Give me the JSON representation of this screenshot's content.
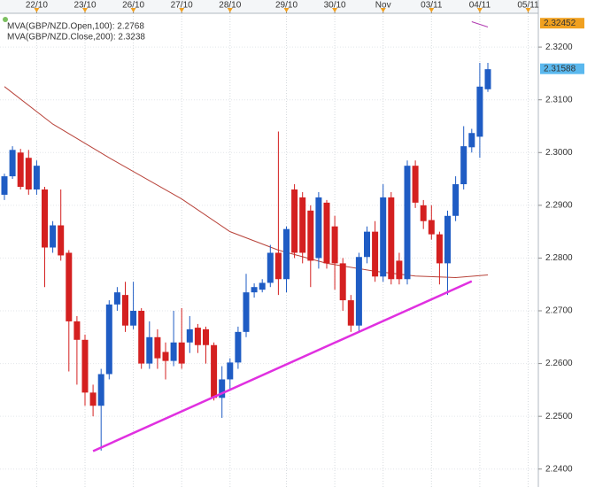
{
  "chart_data": {
    "type": "candlestick",
    "categories": [
      null,
      null,
      null,
      null,
      "22/10",
      null,
      null,
      null,
      null,
      null,
      "23/10",
      null,
      null,
      null,
      null,
      null,
      "26/10",
      null,
      null,
      null,
      null,
      null,
      "27/10",
      null,
      null,
      null,
      null,
      null,
      "28/10",
      null,
      null,
      null,
      null,
      null,
      null,
      "29/10",
      null,
      null,
      null,
      null,
      null,
      "30/10",
      null,
      null,
      null,
      null,
      null,
      "Nov",
      null,
      null,
      null,
      null,
      null,
      "03/11",
      null,
      null,
      null,
      null,
      null,
      "04/11",
      null,
      null,
      null,
      null,
      null,
      "05/11"
    ],
    "open": [
      2.292,
      2.2955,
      2.3,
      2.299,
      2.293,
      2.293,
      2.282,
      2.2862,
      2.281,
      2.268,
      2.2645,
      2.2545,
      2.252,
      2.258,
      2.2712,
      2.273,
      2.2672,
      2.27,
      2.26,
      2.265,
      2.2622,
      2.2605,
      2.264,
      2.264,
      2.2668,
      2.2665,
      2.2635,
      2.2535,
      2.257,
      2.2602,
      2.266,
      2.2735,
      2.274,
      2.2753,
      2.281,
      2.276,
      2.293,
      2.2915,
      2.289,
      2.28,
      2.2905,
      2.286,
      2.279,
      2.272,
      2.2672,
      2.2802,
      2.285,
      2.2765,
      2.2915,
      2.2795,
      2.276,
      2.2975,
      2.29,
      2.2872,
      2.2845,
      2.279,
      2.288,
      2.294,
      2.301,
      2.303,
      2.312,
      null,
      null,
      null,
      null,
      null
    ],
    "high": [
      2.296,
      2.3012,
      2.3007,
      2.3005,
      2.2985,
      2.2935,
      2.287,
      2.293,
      2.2815,
      2.269,
      2.2655,
      2.256,
      2.259,
      2.272,
      2.2745,
      2.2755,
      2.2755,
      2.2705,
      2.268,
      2.2665,
      2.264,
      2.27,
      2.2705,
      2.269,
      2.2675,
      2.267,
      2.264,
      2.2595,
      2.261,
      2.267,
      2.277,
      2.2752,
      2.276,
      2.2825,
      2.304,
      2.286,
      2.294,
      2.2925,
      2.29,
      2.2925,
      2.291,
      2.288,
      2.28,
      2.273,
      2.281,
      2.286,
      2.287,
      2.294,
      2.2925,
      2.281,
      2.2985,
      2.2985,
      2.291,
      2.29,
      2.285,
      2.289,
      2.2955,
      2.305,
      2.3045,
      2.317,
      2.317,
      null,
      null,
      null,
      null,
      null
    ],
    "low": [
      2.291,
      2.295,
      2.293,
      2.292,
      2.292,
      2.2745,
      2.281,
      2.2795,
      2.2585,
      2.256,
      2.252,
      2.25,
      2.2435,
      2.257,
      2.27,
      2.266,
      2.2665,
      2.259,
      2.259,
      2.259,
      2.257,
      2.2595,
      2.259,
      2.262,
      2.262,
      2.26,
      2.253,
      2.2497,
      2.255,
      2.259,
      2.265,
      2.2725,
      2.2735,
      2.2745,
      2.273,
      2.2735,
      2.28,
      2.279,
      2.2745,
      2.278,
      2.278,
      2.274,
      2.27,
      2.266,
      2.266,
      2.279,
      2.2755,
      2.2755,
      2.275,
      2.275,
      2.275,
      2.2895,
      2.2855,
      2.2835,
      2.275,
      2.273,
      2.287,
      2.293,
      2.3,
      2.299,
      2.3115,
      null,
      null,
      null,
      null,
      null
    ],
    "close": [
      2.2955,
      2.3005,
      2.2935,
      2.293,
      2.2975,
      2.282,
      2.2862,
      2.2805,
      2.268,
      2.2645,
      2.2545,
      2.252,
      2.258,
      2.2712,
      2.2735,
      2.2672,
      2.27,
      2.26,
      2.265,
      2.261,
      2.2605,
      2.264,
      2.26,
      2.2665,
      2.2635,
      2.2635,
      2.2535,
      2.257,
      2.2602,
      2.266,
      2.2735,
      2.2745,
      2.2753,
      2.281,
      2.276,
      2.2855,
      2.281,
      2.281,
      2.2795,
      2.2915,
      2.279,
      2.279,
      2.272,
      2.2672,
      2.2802,
      2.285,
      2.2765,
      2.2915,
      2.276,
      2.276,
      2.2975,
      2.2905,
      2.287,
      2.2845,
      2.279,
      2.288,
      2.294,
      2.3012,
      2.3037,
      2.3125,
      2.3158,
      null,
      null,
      null,
      null,
      null
    ],
    "up_color": "#1f5cc4",
    "down_color": "#d42020",
    "lines": [
      {
        "name": "MVA(GBP/NZD.Open,100): 2.2768",
        "color": "#b8433a",
        "x": [
          0,
          6,
          13,
          22,
          28,
          34,
          40,
          46,
          51,
          56,
          60
        ],
        "values": [
          2.3125,
          2.3054,
          2.299,
          2.2912,
          2.285,
          2.2815,
          2.279,
          2.2775,
          2.2766,
          2.2763,
          2.2768
        ]
      },
      {
        "name": "MVA(GBP/NZD.Close,200): 2.3238",
        "color": "#b03ab0",
        "x": [
          58,
          60
        ],
        "values": [
          2.3248,
          2.3238
        ]
      }
    ],
    "trendline": {
      "color": "#e030e0",
      "x": [
        11,
        58
      ],
      "values": [
        2.2434,
        2.2756
      ]
    },
    "price_tags": [
      {
        "value": 2.32452,
        "color": "#f0a020"
      },
      {
        "value": 2.31588,
        "color": "#5ab8ee"
      }
    ],
    "ylim": [
      2.2366,
      2.3264
    ],
    "yticks": [
      {
        "value": 2.24,
        "label": "2.2400"
      },
      {
        "value": 2.25,
        "label": "2.2500"
      },
      {
        "value": 2.26,
        "label": "2.2600"
      },
      {
        "value": 2.27,
        "label": "2.2700"
      },
      {
        "value": 2.28,
        "label": "2.2800"
      },
      {
        "value": 2.29,
        "label": "2.2900"
      },
      {
        "value": 2.3,
        "label": "2.3000"
      },
      {
        "value": 2.31,
        "label": "2.3100"
      },
      {
        "value": 2.32,
        "label": "2.3200"
      }
    ],
    "grid": true
  }
}
